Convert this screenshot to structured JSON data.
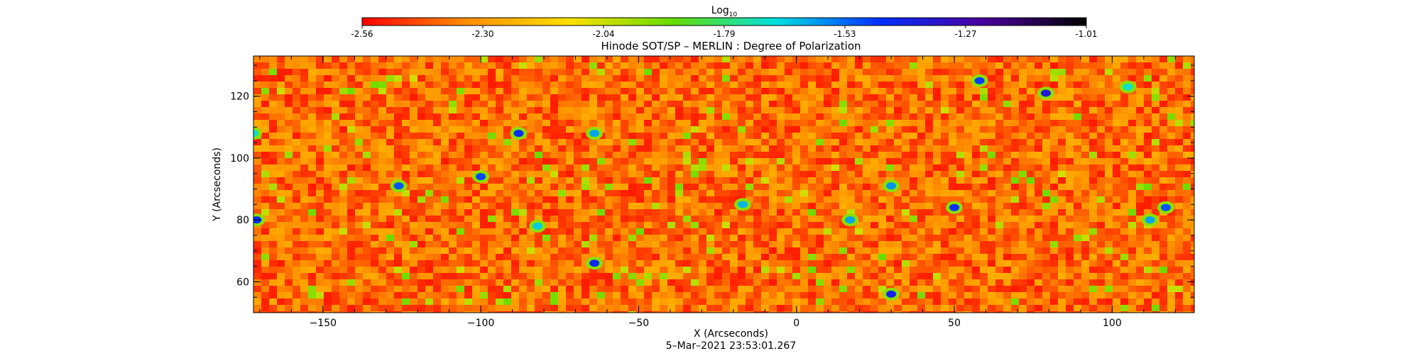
{
  "chart_data": {
    "type": "heatmap",
    "title": "Hinode SOT/SP – MERLIN : Degree of Polarization",
    "colorbar": {
      "label": "Log",
      "label_subscript": "10",
      "ticks": [
        "-2.56",
        "-2.30",
        "-2.04",
        "-1.79",
        "-1.53",
        "-1.27",
        "-1.01"
      ],
      "range": [
        -2.56,
        -1.01
      ],
      "colors": [
        "#ff0000",
        "#ff8c00",
        "#ffe000",
        "#66dd00",
        "#00e0e0",
        "#0030ff",
        "#4b00a0",
        "#000000"
      ]
    },
    "xlabel": "X (Arcseconds)",
    "ylabel": "Y (Arcseconds)",
    "xlim": [
      -172,
      126
    ],
    "ylim": [
      50,
      133
    ],
    "x_ticks": [
      "−150",
      "−100",
      "−50",
      "0",
      "50",
      "100"
    ],
    "x_tick_values": [
      -150,
      -100,
      -50,
      0,
      50,
      100
    ],
    "y_ticks": [
      "60",
      "80",
      "100",
      "120"
    ],
    "y_tick_values": [
      60,
      80,
      100,
      120
    ],
    "timestamp": "5–Mar–2021 23:53:01.267",
    "colormap": "rainbow-red-to-black",
    "dominant_value_range": [
      -2.52,
      -2.25
    ],
    "strong_features": [
      {
        "x": -171,
        "y": 80,
        "value": -1.45
      },
      {
        "x": -126,
        "y": 91,
        "value": -1.5
      },
      {
        "x": -100,
        "y": 94,
        "value": -1.48
      },
      {
        "x": -88,
        "y": 108,
        "value": -1.45
      },
      {
        "x": -64,
        "y": 108,
        "value": -1.6
      },
      {
        "x": -64,
        "y": 66,
        "value": -1.42
      },
      {
        "x": -82,
        "y": 78,
        "value": -1.65
      },
      {
        "x": -17,
        "y": 85,
        "value": -1.62
      },
      {
        "x": 17,
        "y": 80,
        "value": -1.6
      },
      {
        "x": 30,
        "y": 56,
        "value": -1.4
      },
      {
        "x": 30,
        "y": 91,
        "value": -1.58
      },
      {
        "x": 50,
        "y": 84,
        "value": -1.45
      },
      {
        "x": 58,
        "y": 125,
        "value": -1.47
      },
      {
        "x": 79,
        "y": 121,
        "value": -1.35
      },
      {
        "x": 105,
        "y": 123,
        "value": -1.7
      },
      {
        "x": 117,
        "y": 84,
        "value": -1.5
      },
      {
        "x": 112,
        "y": 80,
        "value": -1.6
      },
      {
        "x": -172,
        "y": 108,
        "value": -1.7
      }
    ],
    "grid": false
  }
}
